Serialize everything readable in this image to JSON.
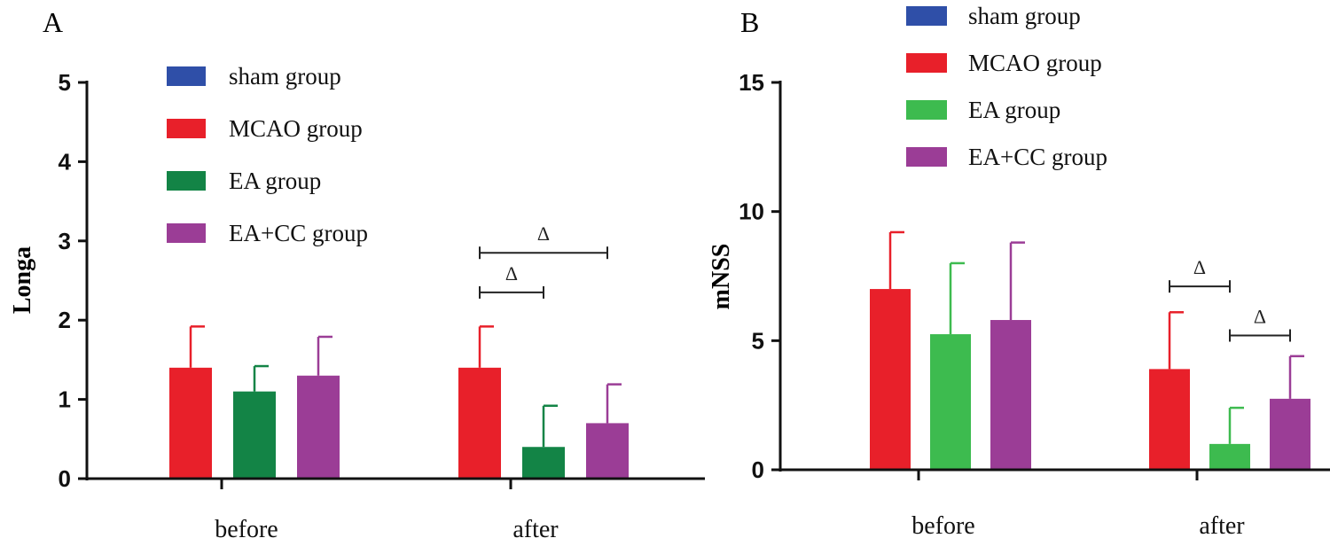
{
  "panels": [
    {
      "label": "A",
      "legend": [
        {
          "name": "sham group",
          "color": "#2f4fa8"
        },
        {
          "name": "MCAO group",
          "color": "#e8202a"
        },
        {
          "name": "EA group",
          "color": "#138446"
        },
        {
          "name": "EA+CC group",
          "color": "#9b3d96"
        }
      ]
    },
    {
      "label": "B",
      "legend": [
        {
          "name": "sham group",
          "color": "#2f4fa8"
        },
        {
          "name": "MCAO group",
          "color": "#e8202a"
        },
        {
          "name": "EA group",
          "color": "#3dbb4f"
        },
        {
          "name": "EA+CC group",
          "color": "#9b3d96"
        }
      ]
    }
  ],
  "chart_data": [
    {
      "type": "bar",
      "panel": "A",
      "title": "",
      "xlabel": "",
      "ylabel": "Longa",
      "categories": [
        "before",
        "after"
      ],
      "ylim": [
        0,
        5
      ],
      "yticks": [
        0,
        1,
        2,
        3,
        4,
        5
      ],
      "ytick_labels": [
        "0",
        "1",
        "2",
        "3",
        "4",
        "5"
      ],
      "legend_position": "top-center",
      "series": [
        {
          "name": "sham group",
          "color": "#2f4fa8",
          "values": [
            0,
            0
          ],
          "errors": [
            0,
            0
          ]
        },
        {
          "name": "MCAO group",
          "color": "#e8202a",
          "values": [
            1.4,
            1.4
          ],
          "errors": [
            0.52,
            0.52
          ]
        },
        {
          "name": "EA group",
          "color": "#138446",
          "values": [
            1.1,
            0.4
          ],
          "errors": [
            0.32,
            0.52
          ]
        },
        {
          "name": "EA+CC group",
          "color": "#9b3d96",
          "values": [
            1.3,
            0.7
          ],
          "errors": [
            0.49,
            0.49
          ]
        }
      ],
      "annotations": [
        {
          "text": "Δ",
          "category": "after",
          "from_series": 1,
          "to_series": 2,
          "y": 2.35
        },
        {
          "text": "Δ",
          "category": "after",
          "from_series": 1,
          "to_series": 3,
          "y": 2.85
        }
      ]
    },
    {
      "type": "bar",
      "panel": "B",
      "title": "",
      "xlabel": "",
      "ylabel": "mNSS",
      "categories": [
        "before",
        "after"
      ],
      "ylim": [
        0,
        15
      ],
      "yticks": [
        0,
        5,
        10,
        15
      ],
      "ytick_labels": [
        "0",
        "5",
        "10",
        "15"
      ],
      "legend_position": "top-center",
      "series": [
        {
          "name": "sham group",
          "color": "#2f4fa8",
          "values": [
            0,
            0
          ],
          "errors": [
            0,
            0
          ]
        },
        {
          "name": "MCAO group",
          "color": "#e8202a",
          "values": [
            7.0,
            3.9
          ],
          "errors": [
            2.2,
            2.2
          ]
        },
        {
          "name": "EA group",
          "color": "#3dbb4f",
          "values": [
            5.25,
            1.0
          ],
          "errors": [
            2.75,
            1.4
          ]
        },
        {
          "name": "EA+CC group",
          "color": "#9b3d96",
          "values": [
            5.8,
            2.75
          ],
          "errors": [
            3.0,
            1.65
          ]
        }
      ],
      "annotations": [
        {
          "text": "Δ",
          "category": "after",
          "from_series": 1,
          "to_series": 2,
          "y": 7.1
        },
        {
          "text": "Δ",
          "category": "after",
          "from_series": 2,
          "to_series": 3,
          "y": 5.2
        }
      ]
    }
  ]
}
